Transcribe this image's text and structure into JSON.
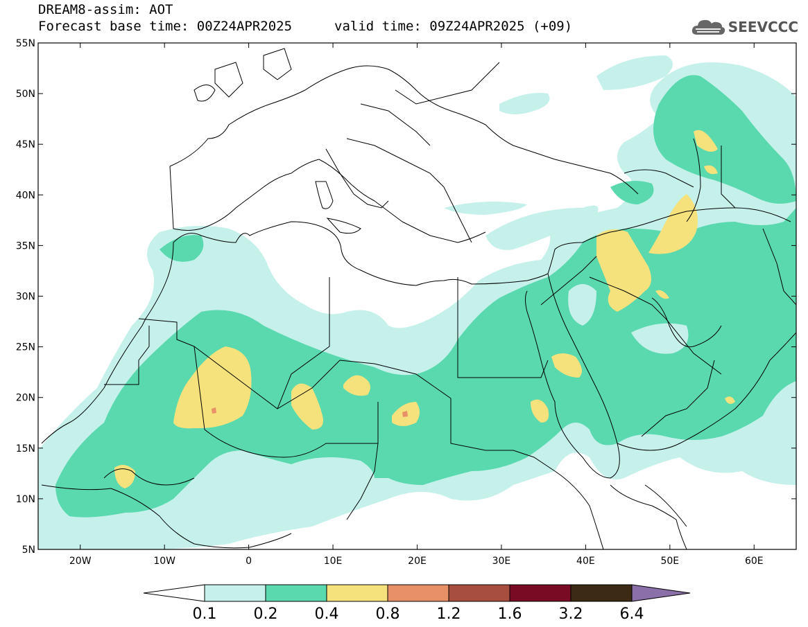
{
  "header": {
    "title": "DREAM8-assim: AOT",
    "base_time": "Forecast base time: 00Z24APR2025",
    "valid_time": "valid time: 09Z24APR2025 (+09)"
  },
  "logo": {
    "text": "SEEVCCC",
    "icon": "cloud-logo-icon"
  },
  "map": {
    "lon_range": [
      -25,
      65
    ],
    "lat_range": [
      5,
      55
    ],
    "lat_ticks": [
      "5N",
      "10N",
      "15N",
      "20N",
      "25N",
      "30N",
      "35N",
      "40N",
      "45N",
      "50N",
      "55N"
    ],
    "lon_ticks": [
      "20W",
      "10W",
      "0",
      "10E",
      "20E",
      "30E",
      "40E",
      "50E",
      "60E"
    ],
    "lat_tick_values": [
      5,
      10,
      15,
      20,
      25,
      30,
      35,
      40,
      45,
      50,
      55
    ],
    "lon_tick_values": [
      -20,
      -10,
      0,
      10,
      20,
      30,
      40,
      50,
      60
    ]
  },
  "colorbar": {
    "labels": [
      "0.1",
      "0.2",
      "0.4",
      "0.8",
      "1.2",
      "1.6",
      "3.2",
      "6.4"
    ],
    "colors": [
      "#c5f1ea",
      "#5ad9ae",
      "#f5e27c",
      "#e89068",
      "#a84e3f",
      "#7a0b25",
      "#3c2a15",
      "#8a6fa8"
    ],
    "low_arrow_color": "#ffffff"
  },
  "legend_colors": {
    "c01": "#c5f1ea",
    "c02": "#5ad9ae",
    "c04": "#f5e27c",
    "c08": "#e89068"
  }
}
